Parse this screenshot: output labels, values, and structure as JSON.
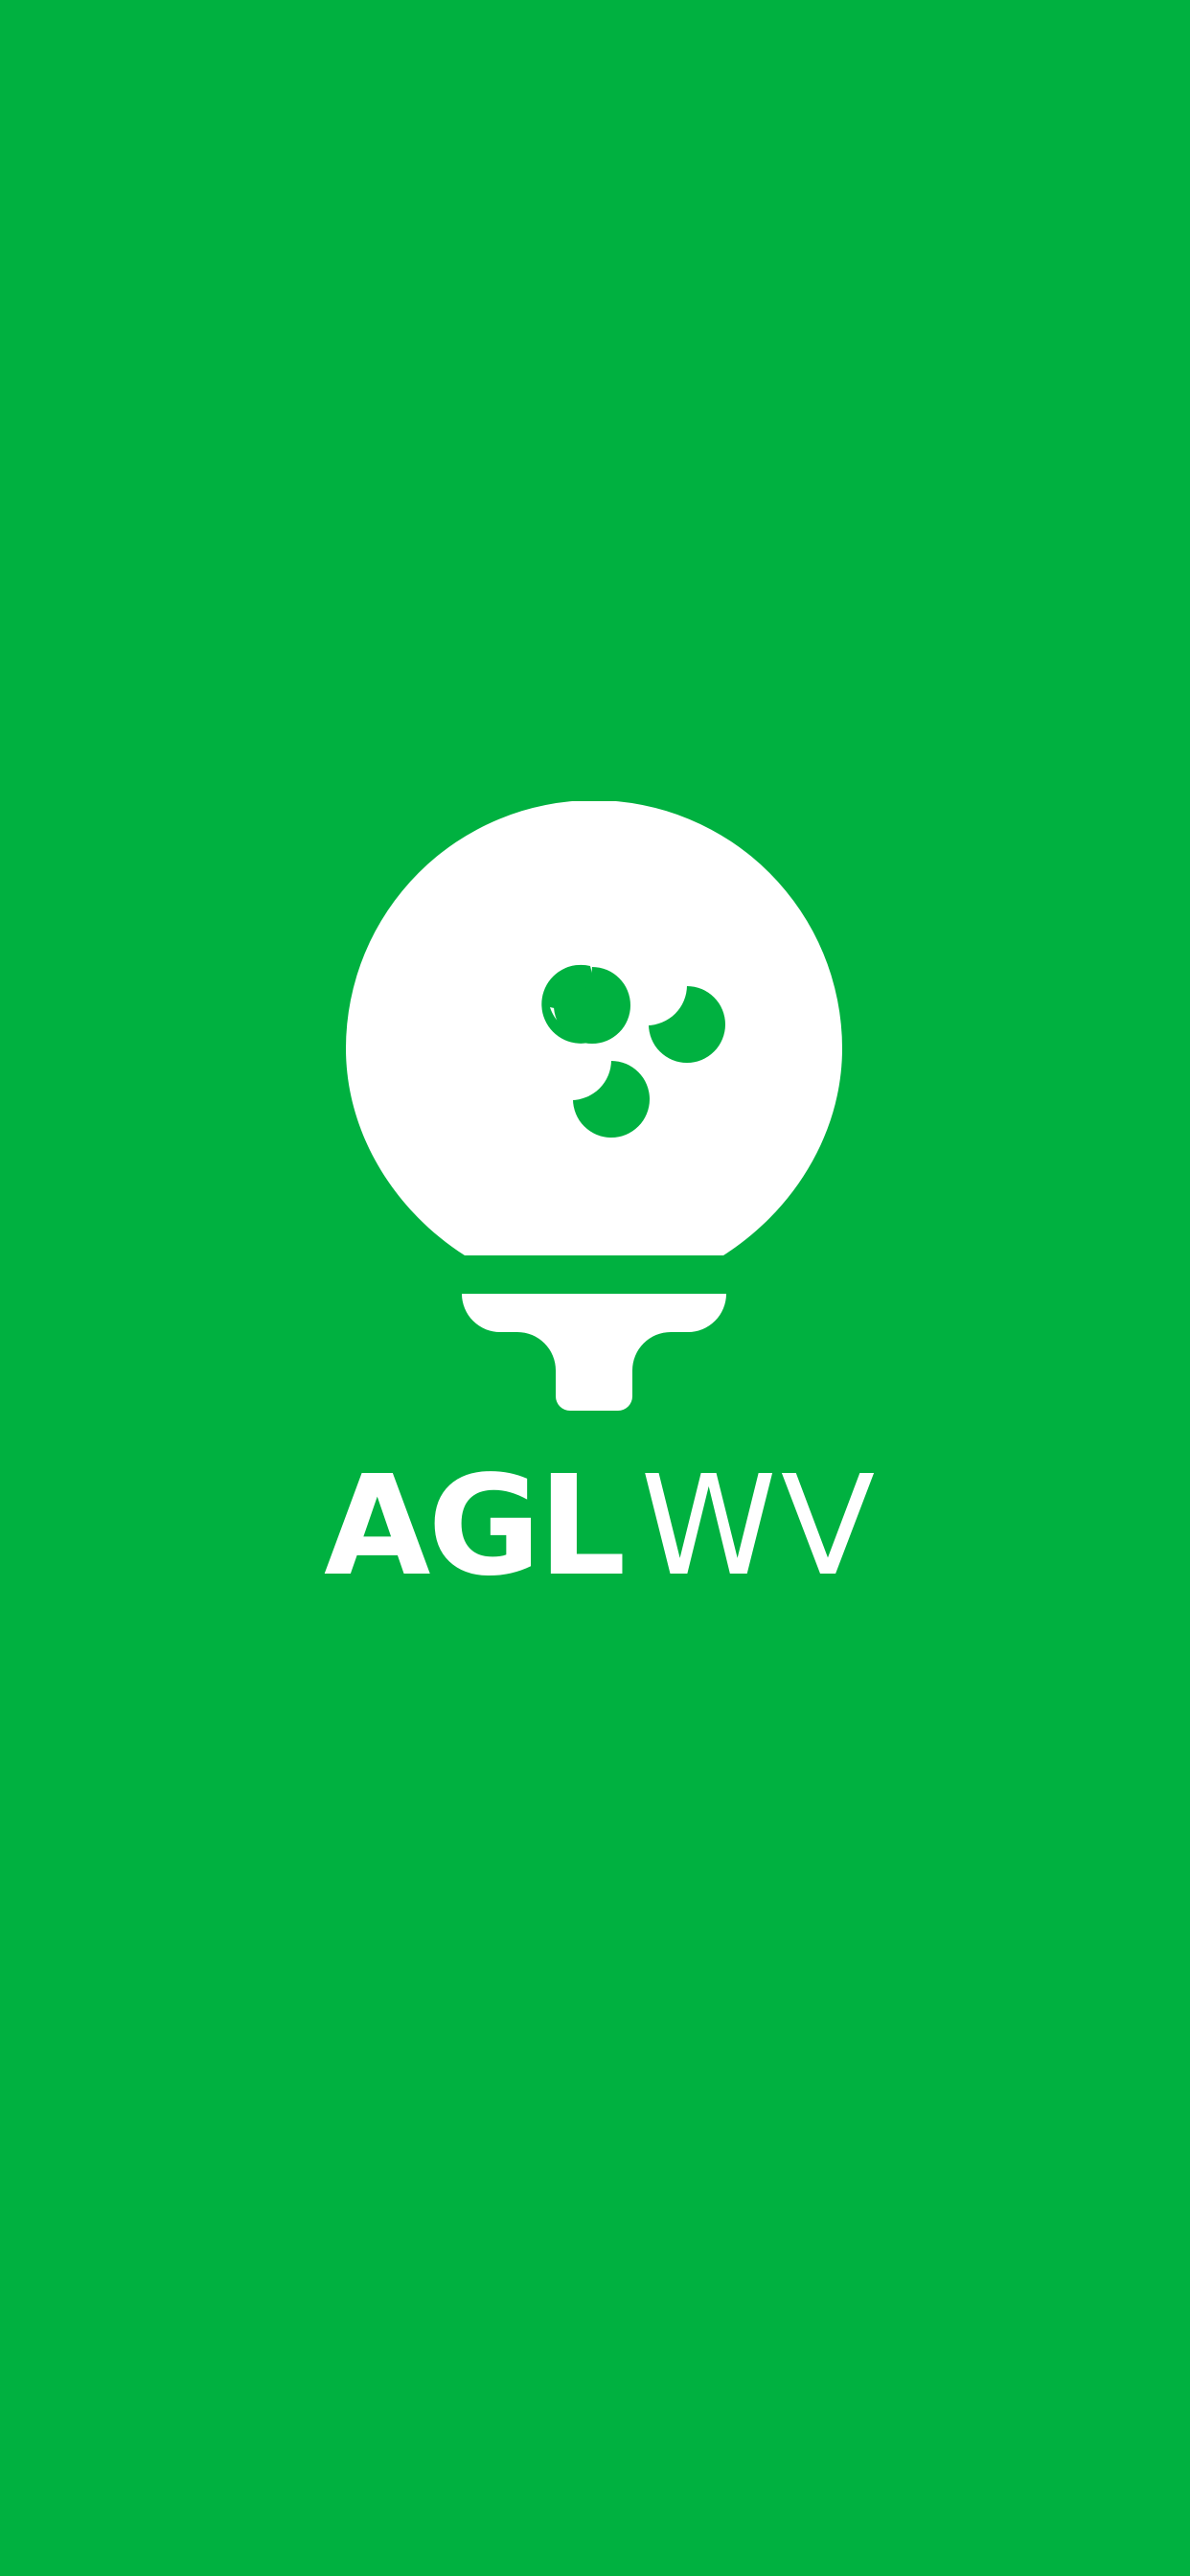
{
  "brand": {
    "name_bold": "AGL",
    "name_light": "WV",
    "background_color": "#00B140",
    "foreground_color": "#FFFFFF",
    "logo_icon": "golf-ball-on-tee-icon"
  }
}
